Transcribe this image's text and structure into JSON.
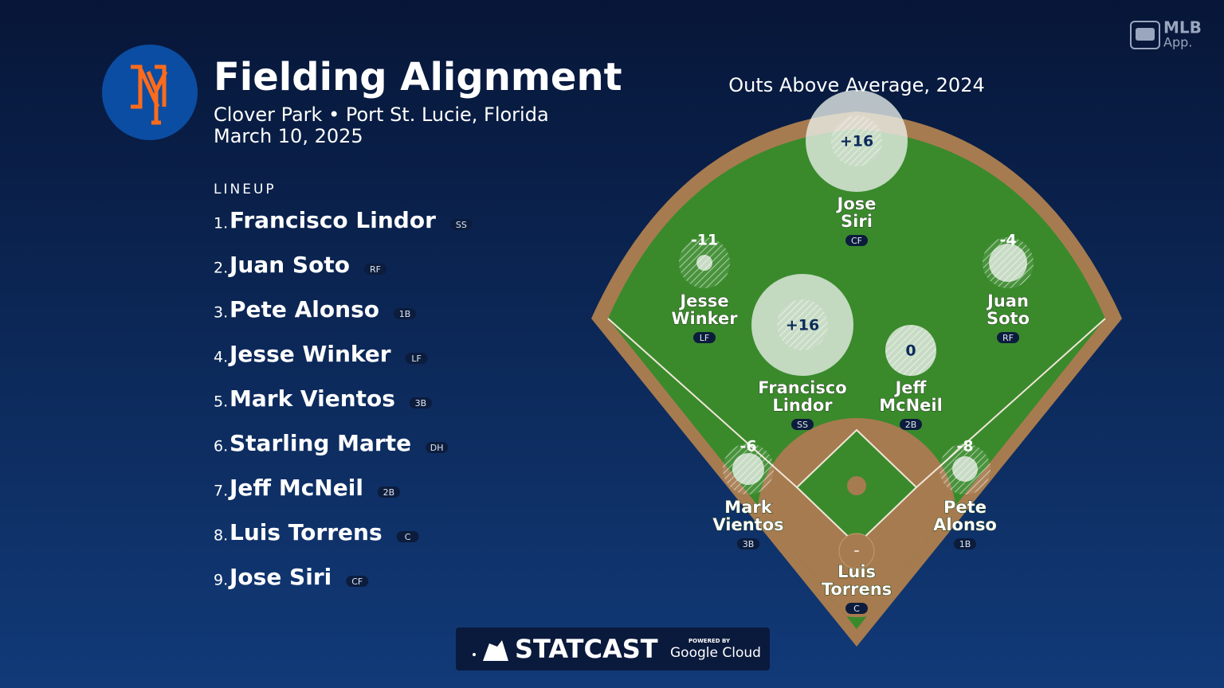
{
  "header": {
    "title": "Fielding Alignment",
    "location": "Clover Park • Port St. Lucie, Florida",
    "date": "March 10, 2025"
  },
  "branding": {
    "app_top": "MLB",
    "app_bottom": "App.",
    "footer_main": "STATCAST",
    "footer_powered": "POWERED BY",
    "footer_cloud": "Google Cloud"
  },
  "lineup": {
    "label": "LINEUP",
    "players": [
      {
        "order": "1.",
        "name": "Francisco Lindor",
        "position": "SS"
      },
      {
        "order": "2.",
        "name": "Juan Soto",
        "position": "RF"
      },
      {
        "order": "3.",
        "name": "Pete Alonso",
        "position": "1B"
      },
      {
        "order": "4.",
        "name": "Jesse Winker",
        "position": "LF"
      },
      {
        "order": "5.",
        "name": "Mark Vientos",
        "position": "3B"
      },
      {
        "order": "6.",
        "name": "Starling Marte",
        "position": "DH"
      },
      {
        "order": "7.",
        "name": "Jeff McNeil",
        "position": "2B"
      },
      {
        "order": "8.",
        "name": "Luis Torrens",
        "position": "C"
      },
      {
        "order": "9.",
        "name": "Jose Siri",
        "position": "CF"
      }
    ]
  },
  "field": {
    "title": "Outs Above Average, 2024",
    "players": [
      {
        "name": [
          "Jose",
          "Siri"
        ],
        "position": "CF",
        "oaa": 16,
        "oaa_label": "+16"
      },
      {
        "name": [
          "Jesse",
          "Winker"
        ],
        "position": "LF",
        "oaa": -11,
        "oaa_label": "-11"
      },
      {
        "name": [
          "Juan",
          "Soto"
        ],
        "position": "RF",
        "oaa": -4,
        "oaa_label": "-4"
      },
      {
        "name": [
          "Francisco",
          "Lindor"
        ],
        "position": "SS",
        "oaa": 16,
        "oaa_label": "+16"
      },
      {
        "name": [
          "Jeff",
          "McNeil"
        ],
        "position": "2B",
        "oaa": 0,
        "oaa_label": "0"
      },
      {
        "name": [
          "Mark",
          "Vientos"
        ],
        "position": "3B",
        "oaa": -6,
        "oaa_label": "-6"
      },
      {
        "name": [
          "Pete",
          "Alonso"
        ],
        "position": "1B",
        "oaa": -8,
        "oaa_label": "-8"
      },
      {
        "name": [
          "Luis",
          "Torrens"
        ],
        "position": "C",
        "oaa": null,
        "oaa_label": "–"
      }
    ]
  }
}
